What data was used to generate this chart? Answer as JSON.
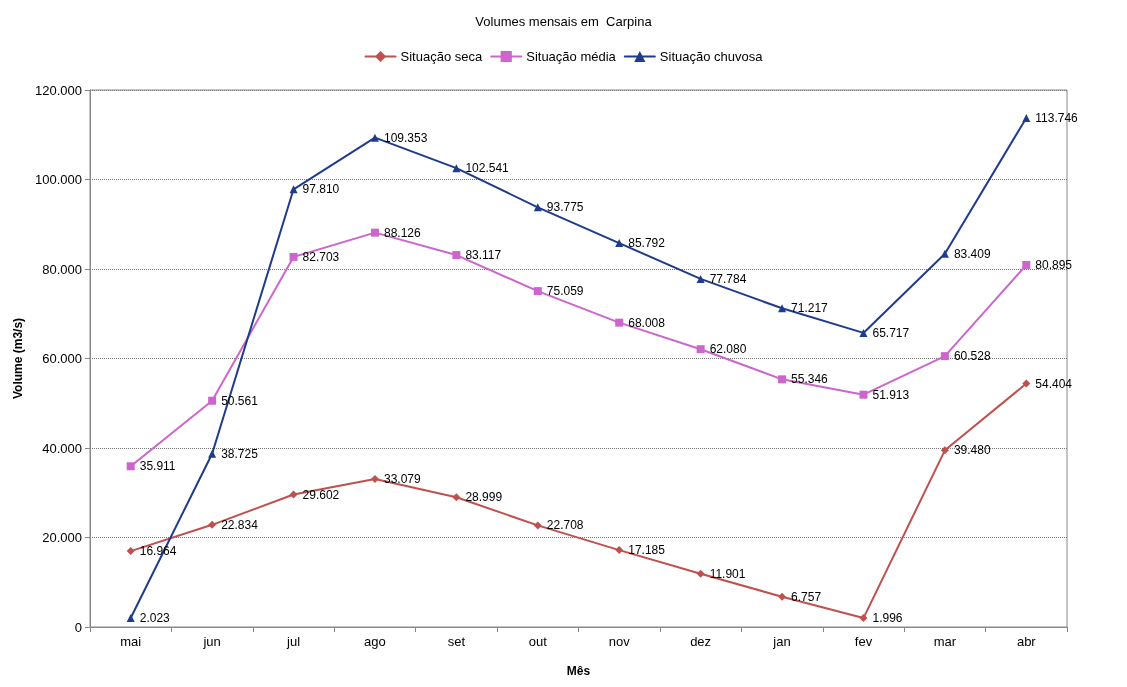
{
  "chart_data": {
    "type": "line",
    "title": "Volumes mensais em  Carpina",
    "xlabel": "Mês",
    "ylabel": "Volume (m3/s)",
    "categories": [
      "mai",
      "jun",
      "jul",
      "ago",
      "set",
      "out",
      "nov",
      "dez",
      "jan",
      "fev",
      "mar",
      "abr"
    ],
    "series": [
      {
        "name": "Situação seca",
        "color": "#c0504d",
        "marker": "diamond",
        "values": [
          16964,
          22834,
          29602,
          33079,
          28999,
          22708,
          17185,
          11901,
          6757,
          1996,
          39480,
          54404
        ],
        "value_labels": [
          "16.964",
          "22.834",
          "29.602",
          "33.079",
          "28.999",
          "22.708",
          "17.185",
          "11.901",
          "6.757",
          "1.996",
          "39.480",
          "54.404"
        ]
      },
      {
        "name": "Situação média",
        "color": "#cc66cc",
        "marker": "square",
        "values": [
          35911,
          50561,
          82703,
          88126,
          83117,
          75059,
          68008,
          62080,
          55346,
          51913,
          60528,
          80895
        ],
        "value_labels": [
          "35.911",
          "50.561",
          "82.703",
          "88.126",
          "83.117",
          "75.059",
          "68.008",
          "62.080",
          "55.346",
          "51.913",
          "60.528",
          "80.895"
        ]
      },
      {
        "name": "Situação chuvosa",
        "color": "#1f3b8c",
        "marker": "triangle",
        "values": [
          2023,
          38725,
          97810,
          109353,
          102541,
          93775,
          85792,
          77784,
          71217,
          65717,
          83409,
          113746
        ],
        "value_labels": [
          "2.023",
          "38.725",
          "97.810",
          "109.353",
          "102.541",
          "93.775",
          "85.792",
          "77.784",
          "71.217",
          "65.717",
          "83.409",
          "113.746"
        ]
      }
    ],
    "ylim": [
      0,
      120000
    ],
    "yticks": [
      0,
      {
        "value": 20000,
        "label": "20.000"
      },
      {
        "value": 40000,
        "label": "40.000"
      },
      {
        "value": 60000,
        "label": "60.000"
      },
      {
        "value": 80000,
        "label": "80.000"
      },
      {
        "value": 100000,
        "label": "100.000"
      },
      {
        "value": 120000,
        "label": "120.000"
      }
    ],
    "grid": "y",
    "legend": "top",
    "line_style": "solid"
  }
}
